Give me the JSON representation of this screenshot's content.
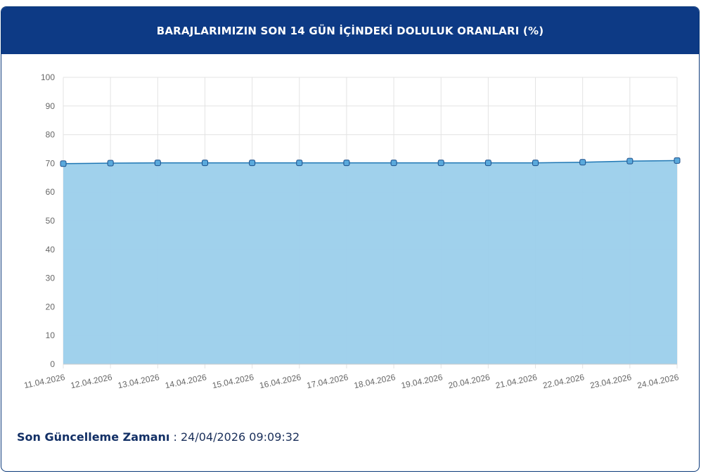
{
  "header": {
    "title": "BARAJLARIMIZIN SON 14 GÜN İÇİNDEKİ DOLULUK ORANLARI (%)"
  },
  "chart_data": {
    "type": "area",
    "title": "BARAJLARIMIZIN SON 14 GÜN İÇİNDEKİ DOLULUK ORANLARI (%)",
    "categories": [
      "11.04.2026",
      "12.04.2026",
      "13.04.2026",
      "14.04.2026",
      "15.04.2026",
      "16.04.2026",
      "17.04.2026",
      "18.04.2026",
      "19.04.2026",
      "20.04.2026",
      "21.04.2026",
      "22.04.2026",
      "23.04.2026",
      "24.04.2026"
    ],
    "values": [
      69.9,
      70.1,
      70.2,
      70.2,
      70.2,
      70.2,
      70.2,
      70.2,
      70.2,
      70.2,
      70.2,
      70.4,
      70.8,
      71.0
    ],
    "ylim": [
      0,
      100
    ],
    "yticks": [
      0,
      10,
      20,
      30,
      40,
      50,
      60,
      70,
      80,
      90,
      100
    ],
    "grid": true,
    "colors": {
      "fill": "#9bcfeb",
      "line": "#1f77b4",
      "marker": "#5aa9dc"
    }
  },
  "footer": {
    "label": "Son Güncelleme Zamanı",
    "separator": " : ",
    "value": "24/04/2026 09:09:32"
  }
}
